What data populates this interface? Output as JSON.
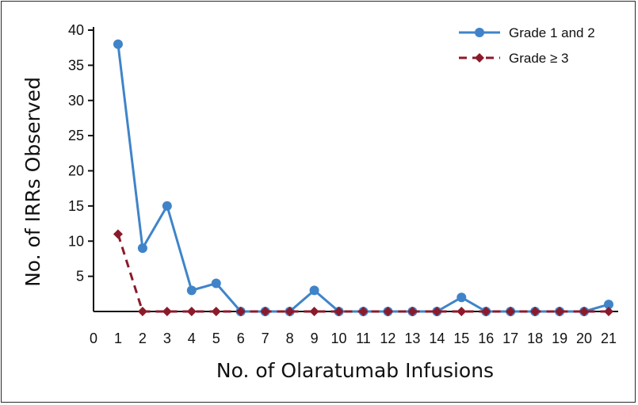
{
  "chart_data": {
    "type": "line",
    "xlabel": "No. of Olaratumab Infusions",
    "ylabel": "No. of IRRs Observed",
    "xlim": [
      0,
      21
    ],
    "ylim": [
      0,
      40
    ],
    "x_ticks": [
      "0",
      "1",
      "2",
      "3",
      "4",
      "5",
      "6",
      "7",
      "8",
      "9",
      "10",
      "11",
      "12",
      "13",
      "14",
      "15",
      "16",
      "17",
      "18",
      "19",
      "20",
      "21"
    ],
    "y_ticks": [
      "5",
      "10",
      "15",
      "20",
      "25",
      "30",
      "35",
      "40"
    ],
    "legend_position": "top-right",
    "series": [
      {
        "name": "Grade 1 and 2",
        "color": "#3f84c9",
        "marker": "circle",
        "line_style": "solid",
        "x": [
          1,
          2,
          3,
          4,
          5,
          6,
          7,
          8,
          9,
          10,
          11,
          12,
          13,
          14,
          15,
          16,
          17,
          18,
          19,
          20,
          21
        ],
        "values": [
          38,
          9,
          15,
          3,
          4,
          0,
          0,
          0,
          3,
          0,
          0,
          0,
          0,
          0,
          2,
          0,
          0,
          0,
          0,
          0,
          1
        ]
      },
      {
        "name": "Grade ≥ 3",
        "color": "#8b1a2b",
        "marker": "diamond",
        "line_style": "dashed",
        "x": [
          1,
          2,
          3,
          4,
          5,
          6,
          7,
          8,
          9,
          10,
          11,
          12,
          13,
          14,
          15,
          16,
          17,
          18,
          19,
          20,
          21
        ],
        "values": [
          11,
          0,
          0,
          0,
          0,
          0,
          0,
          0,
          0,
          0,
          0,
          0,
          0,
          0,
          0,
          0,
          0,
          0,
          0,
          0,
          0
        ]
      }
    ]
  }
}
